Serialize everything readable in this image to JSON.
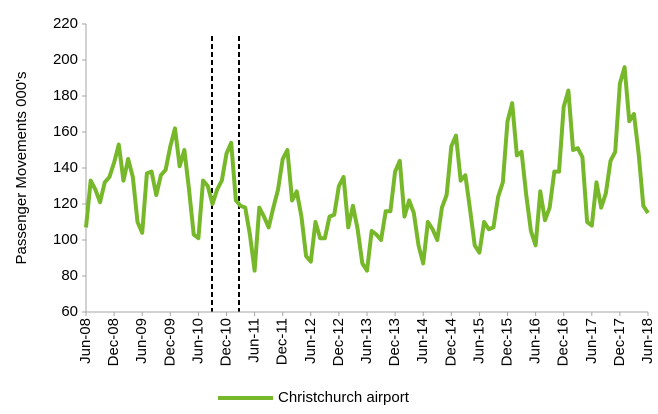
{
  "chart_data": {
    "type": "line",
    "y_label": "Passenger Movements 000's",
    "categories": [
      "Jun-08",
      null,
      null,
      null,
      null,
      null,
      "Dec-08",
      null,
      null,
      null,
      null,
      null,
      "Jun-09",
      null,
      null,
      null,
      null,
      null,
      "Dec-09",
      null,
      null,
      null,
      null,
      null,
      "Jun-10",
      null,
      null,
      null,
      null,
      null,
      "Dec-10",
      null,
      null,
      null,
      null,
      null,
      "Jun-11",
      null,
      null,
      null,
      null,
      null,
      "Dec-11",
      null,
      null,
      null,
      null,
      null,
      "Jun-12",
      null,
      null,
      null,
      null,
      null,
      "Dec-12",
      null,
      null,
      null,
      null,
      null,
      "Jun-13",
      null,
      null,
      null,
      null,
      null,
      "Dec-13",
      null,
      null,
      null,
      null,
      null,
      "Jun-14",
      null,
      null,
      null,
      null,
      null,
      "Dec-14",
      null,
      null,
      null,
      null,
      null,
      "Jun-15",
      null,
      null,
      null,
      null,
      null,
      "Dec-15",
      null,
      null,
      null,
      null,
      null,
      "Jun-16",
      null,
      null,
      null,
      null,
      null,
      "Dec-16",
      null,
      null,
      null,
      null,
      null,
      "Jun-17",
      null,
      null,
      null,
      null,
      null,
      "Dec-17",
      null,
      null,
      null,
      null,
      null,
      "Jun-18"
    ],
    "series": [
      {
        "name": "Christchurch airport",
        "color": "#76b82a",
        "values": [
          107,
          133,
          128,
          121,
          132,
          135,
          143,
          153,
          133,
          145,
          135,
          110,
          104,
          137,
          138,
          125,
          136,
          139,
          152,
          162,
          141,
          150,
          128,
          103,
          101,
          133,
          130,
          120,
          128,
          133,
          148,
          154,
          122,
          119,
          118,
          103,
          83,
          118,
          113,
          107,
          118,
          128,
          145,
          150,
          122,
          127,
          113,
          91,
          88,
          110,
          101,
          101,
          113,
          114,
          130,
          135,
          107,
          119,
          106,
          87,
          83,
          105,
          103,
          100,
          116,
          116,
          138,
          144,
          113,
          122,
          115,
          97,
          87,
          110,
          106,
          100,
          118,
          125,
          152,
          158,
          133,
          136,
          117,
          97,
          93,
          110,
          106,
          107,
          124,
          132,
          166,
          176,
          147,
          149,
          125,
          105,
          97,
          127,
          111,
          118,
          138,
          138,
          174,
          183,
          150,
          151,
          146,
          110,
          108,
          132,
          118,
          126,
          144,
          149,
          187,
          196,
          166,
          170,
          148,
          119,
          115
        ]
      }
    ],
    "ylim": [
      60,
      220
    ],
    "yticks": [
      60,
      80,
      100,
      120,
      140,
      160,
      180,
      200,
      220
    ],
    "grid": false,
    "legend": "bottom"
  }
}
